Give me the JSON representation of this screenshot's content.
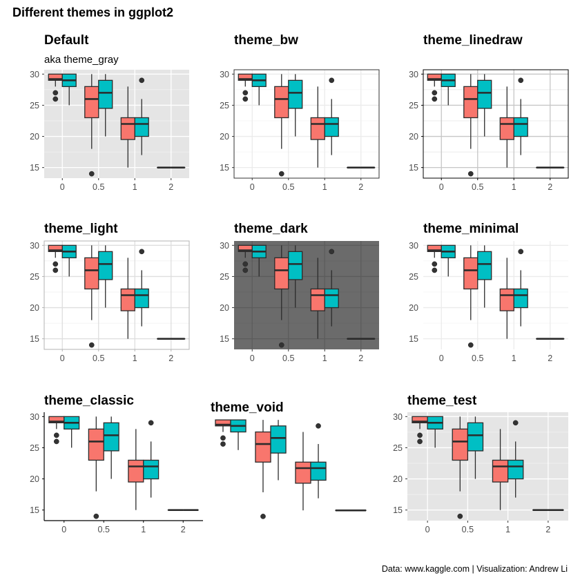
{
  "figure": {
    "title": "Different themes in ggplot2",
    "caption": "Data: www.kaggle.com | Visualization: Andrew Li"
  },
  "colors": {
    "group_a": "#F8766D",
    "group_b": "#00BFC4",
    "outline": "#2b2b2b",
    "gray_panel": "#E5E5E5",
    "dark_panel": "#6B6B6B",
    "text": "#000000",
    "axis_text": "#4D4D4D"
  },
  "chart_data": [
    {
      "type": "box",
      "title": "Default",
      "subtitle": "aka theme_gray",
      "theme": "gray",
      "categories": [
        "0",
        "0.5",
        "1",
        "2"
      ],
      "y_ticks": [
        15,
        20,
        25,
        30
      ],
      "ylim": [
        13.3,
        30.7
      ],
      "series": [
        {
          "boxes": [
            {
              "min": 28,
              "q1": 29,
              "median": 29.2,
              "q3": 30,
              "max": 30,
              "outliers": [
                27,
                26
              ]
            },
            {
              "min": 18,
              "q1": 23,
              "median": 26,
              "q3": 28,
              "max": 30,
              "outliers": [
                14
              ]
            },
            {
              "min": 15,
              "q1": 19.5,
              "median": 22,
              "q3": 23,
              "max": 28,
              "outliers": []
            },
            {
              "min": 15,
              "q1": 15,
              "median": 15,
              "q3": 15,
              "max": 15,
              "outliers": []
            }
          ]
        },
        {
          "boxes": [
            {
              "min": 25,
              "q1": 28,
              "median": 29,
              "q3": 30,
              "max": 30,
              "outliers": []
            },
            {
              "min": 20,
              "q1": 24.5,
              "median": 27,
              "q3": 29,
              "max": 30,
              "outliers": []
            },
            {
              "min": 17,
              "q1": 20,
              "median": 22,
              "q3": 23,
              "max": 26,
              "outliers": [
                29
              ]
            },
            {
              "min": 15,
              "q1": 15,
              "median": 15,
              "q3": 15,
              "max": 15,
              "outliers": []
            }
          ]
        }
      ]
    },
    {
      "type": "box",
      "title": "theme_bw",
      "theme": "bw",
      "categories": [
        "0",
        "0.5",
        "1",
        "2"
      ],
      "y_ticks": [
        15,
        20,
        25,
        30
      ],
      "ylim": [
        13.3,
        30.7
      ],
      "series": [
        {
          "boxes": [
            {
              "min": 28,
              "q1": 29,
              "median": 29.2,
              "q3": 30,
              "max": 30,
              "outliers": [
                27,
                26
              ]
            },
            {
              "min": 18,
              "q1": 23,
              "median": 26,
              "q3": 28,
              "max": 30,
              "outliers": [
                14
              ]
            },
            {
              "min": 15,
              "q1": 19.5,
              "median": 22,
              "q3": 23,
              "max": 28,
              "outliers": []
            },
            {
              "min": 15,
              "q1": 15,
              "median": 15,
              "q3": 15,
              "max": 15,
              "outliers": []
            }
          ]
        },
        {
          "boxes": [
            {
              "min": 25,
              "q1": 28,
              "median": 29,
              "q3": 30,
              "max": 30,
              "outliers": []
            },
            {
              "min": 20,
              "q1": 24.5,
              "median": 27,
              "q3": 29,
              "max": 30,
              "outliers": []
            },
            {
              "min": 17,
              "q1": 20,
              "median": 22,
              "q3": 23,
              "max": 26,
              "outliers": [
                29
              ]
            },
            {
              "min": 15,
              "q1": 15,
              "median": 15,
              "q3": 15,
              "max": 15,
              "outliers": []
            }
          ]
        }
      ]
    },
    {
      "type": "box",
      "title": "theme_linedraw",
      "theme": "linedraw",
      "categories": [
        "0",
        "0.5",
        "1",
        "2"
      ],
      "y_ticks": [
        15,
        20,
        25,
        30
      ],
      "ylim": [
        13.3,
        30.7
      ],
      "series": [
        {
          "boxes": [
            {
              "min": 28,
              "q1": 29,
              "median": 29.2,
              "q3": 30,
              "max": 30,
              "outliers": [
                27,
                26
              ]
            },
            {
              "min": 18,
              "q1": 23,
              "median": 26,
              "q3": 28,
              "max": 30,
              "outliers": [
                14
              ]
            },
            {
              "min": 15,
              "q1": 19.5,
              "median": 22,
              "q3": 23,
              "max": 28,
              "outliers": []
            },
            {
              "min": 15,
              "q1": 15,
              "median": 15,
              "q3": 15,
              "max": 15,
              "outliers": []
            }
          ]
        },
        {
          "boxes": [
            {
              "min": 25,
              "q1": 28,
              "median": 29,
              "q3": 30,
              "max": 30,
              "outliers": []
            },
            {
              "min": 20,
              "q1": 24.5,
              "median": 27,
              "q3": 29,
              "max": 30,
              "outliers": []
            },
            {
              "min": 17,
              "q1": 20,
              "median": 22,
              "q3": 23,
              "max": 26,
              "outliers": [
                29
              ]
            },
            {
              "min": 15,
              "q1": 15,
              "median": 15,
              "q3": 15,
              "max": 15,
              "outliers": []
            }
          ]
        }
      ]
    },
    {
      "type": "box",
      "title": "theme_light",
      "theme": "light",
      "categories": [
        "0",
        "0.5",
        "1",
        "2"
      ],
      "y_ticks": [
        15,
        20,
        25,
        30
      ],
      "ylim": [
        13.3,
        30.7
      ],
      "series": [
        {
          "boxes": [
            {
              "min": 28,
              "q1": 29,
              "median": 29.2,
              "q3": 30,
              "max": 30,
              "outliers": [
                27,
                26
              ]
            },
            {
              "min": 18,
              "q1": 23,
              "median": 26,
              "q3": 28,
              "max": 30,
              "outliers": [
                14
              ]
            },
            {
              "min": 15,
              "q1": 19.5,
              "median": 22,
              "q3": 23,
              "max": 28,
              "outliers": []
            },
            {
              "min": 15,
              "q1": 15,
              "median": 15,
              "q3": 15,
              "max": 15,
              "outliers": []
            }
          ]
        },
        {
          "boxes": [
            {
              "min": 25,
              "q1": 28,
              "median": 29,
              "q3": 30,
              "max": 30,
              "outliers": []
            },
            {
              "min": 20,
              "q1": 24.5,
              "median": 27,
              "q3": 29,
              "max": 30,
              "outliers": []
            },
            {
              "min": 17,
              "q1": 20,
              "median": 22,
              "q3": 23,
              "max": 26,
              "outliers": [
                29
              ]
            },
            {
              "min": 15,
              "q1": 15,
              "median": 15,
              "q3": 15,
              "max": 15,
              "outliers": []
            }
          ]
        }
      ]
    },
    {
      "type": "box",
      "title": "theme_dark",
      "theme": "dark",
      "categories": [
        "0",
        "0.5",
        "1",
        "2"
      ],
      "y_ticks": [
        15,
        20,
        25,
        30
      ],
      "ylim": [
        13.3,
        30.7
      ],
      "series": [
        {
          "boxes": [
            {
              "min": 28,
              "q1": 29,
              "median": 29.2,
              "q3": 30,
              "max": 30,
              "outliers": [
                27,
                26
              ]
            },
            {
              "min": 18,
              "q1": 23,
              "median": 26,
              "q3": 28,
              "max": 30,
              "outliers": [
                14
              ]
            },
            {
              "min": 15,
              "q1": 19.5,
              "median": 22,
              "q3": 23,
              "max": 28,
              "outliers": []
            },
            {
              "min": 15,
              "q1": 15,
              "median": 15,
              "q3": 15,
              "max": 15,
              "outliers": []
            }
          ]
        },
        {
          "boxes": [
            {
              "min": 25,
              "q1": 28,
              "median": 29,
              "q3": 30,
              "max": 30,
              "outliers": []
            },
            {
              "min": 20,
              "q1": 24.5,
              "median": 27,
              "q3": 29,
              "max": 30,
              "outliers": []
            },
            {
              "min": 17,
              "q1": 20,
              "median": 22,
              "q3": 23,
              "max": 26,
              "outliers": [
                29
              ]
            },
            {
              "min": 15,
              "q1": 15,
              "median": 15,
              "q3": 15,
              "max": 15,
              "outliers": []
            }
          ]
        }
      ]
    },
    {
      "type": "box",
      "title": "theme_minimal",
      "theme": "minimal",
      "categories": [
        "0",
        "0.5",
        "1",
        "2"
      ],
      "y_ticks": [
        15,
        20,
        25,
        30
      ],
      "ylim": [
        13.3,
        30.7
      ],
      "series": [
        {
          "boxes": [
            {
              "min": 28,
              "q1": 29,
              "median": 29.2,
              "q3": 30,
              "max": 30,
              "outliers": [
                27,
                26
              ]
            },
            {
              "min": 18,
              "q1": 23,
              "median": 26,
              "q3": 28,
              "max": 30,
              "outliers": [
                14
              ]
            },
            {
              "min": 15,
              "q1": 19.5,
              "median": 22,
              "q3": 23,
              "max": 28,
              "outliers": []
            },
            {
              "min": 15,
              "q1": 15,
              "median": 15,
              "q3": 15,
              "max": 15,
              "outliers": []
            }
          ]
        },
        {
          "boxes": [
            {
              "min": 25,
              "q1": 28,
              "median": 29,
              "q3": 30,
              "max": 30,
              "outliers": []
            },
            {
              "min": 20,
              "q1": 24.5,
              "median": 27,
              "q3": 29,
              "max": 30,
              "outliers": []
            },
            {
              "min": 17,
              "q1": 20,
              "median": 22,
              "q3": 23,
              "max": 26,
              "outliers": [
                29
              ]
            },
            {
              "min": 15,
              "q1": 15,
              "median": 15,
              "q3": 15,
              "max": 15,
              "outliers": []
            }
          ]
        }
      ]
    },
    {
      "type": "box",
      "title": "theme_classic",
      "theme": "classic",
      "categories": [
        "0",
        "0.5",
        "1",
        "2"
      ],
      "y_ticks": [
        15,
        20,
        25,
        30
      ],
      "ylim": [
        13.3,
        30.7
      ],
      "series": [
        {
          "boxes": [
            {
              "min": 28,
              "q1": 29,
              "median": 29.2,
              "q3": 30,
              "max": 30,
              "outliers": [
                27,
                26
              ]
            },
            {
              "min": 18,
              "q1": 23,
              "median": 26,
              "q3": 28,
              "max": 30,
              "outliers": [
                14
              ]
            },
            {
              "min": 15,
              "q1": 19.5,
              "median": 22,
              "q3": 23,
              "max": 28,
              "outliers": []
            },
            {
              "min": 15,
              "q1": 15,
              "median": 15,
              "q3": 15,
              "max": 15,
              "outliers": []
            }
          ]
        },
        {
          "boxes": [
            {
              "min": 25,
              "q1": 28,
              "median": 29,
              "q3": 30,
              "max": 30,
              "outliers": []
            },
            {
              "min": 20,
              "q1": 24.5,
              "median": 27,
              "q3": 29,
              "max": 30,
              "outliers": []
            },
            {
              "min": 17,
              "q1": 20,
              "median": 22,
              "q3": 23,
              "max": 26,
              "outliers": [
                29
              ]
            },
            {
              "min": 15,
              "q1": 15,
              "median": 15,
              "q3": 15,
              "max": 15,
              "outliers": []
            }
          ]
        }
      ]
    },
    {
      "type": "box",
      "title": "theme_void",
      "theme": "void",
      "categories": [],
      "y_ticks": [],
      "ylim": [
        13.3,
        30.7
      ],
      "series": [
        {
          "boxes": [
            {
              "min": 28,
              "q1": 29,
              "median": 29.2,
              "q3": 30,
              "max": 30,
              "outliers": [
                27,
                26
              ]
            },
            {
              "min": 18,
              "q1": 23,
              "median": 26,
              "q3": 28,
              "max": 30,
              "outliers": [
                14
              ]
            },
            {
              "min": 15,
              "q1": 19.5,
              "median": 22,
              "q3": 23,
              "max": 28,
              "outliers": []
            },
            {
              "min": 15,
              "q1": 15,
              "median": 15,
              "q3": 15,
              "max": 15,
              "outliers": []
            }
          ]
        },
        {
          "boxes": [
            {
              "min": 25,
              "q1": 28,
              "median": 29,
              "q3": 30,
              "max": 30,
              "outliers": []
            },
            {
              "min": 20,
              "q1": 24.5,
              "median": 27,
              "q3": 29,
              "max": 30,
              "outliers": []
            },
            {
              "min": 17,
              "q1": 20,
              "median": 22,
              "q3": 23,
              "max": 26,
              "outliers": [
                29
              ]
            },
            {
              "min": 15,
              "q1": 15,
              "median": 15,
              "q3": 15,
              "max": 15,
              "outliers": []
            }
          ]
        }
      ]
    },
    {
      "type": "box",
      "title": "theme_test",
      "theme": "test",
      "categories": [
        "0",
        "0.5",
        "1",
        "2"
      ],
      "y_ticks": [
        15,
        20,
        25,
        30
      ],
      "ylim": [
        13.3,
        30.7
      ],
      "series": [
        {
          "boxes": [
            {
              "min": 28,
              "q1": 29,
              "median": 29.2,
              "q3": 30,
              "max": 30,
              "outliers": [
                27,
                26
              ]
            },
            {
              "min": 18,
              "q1": 23,
              "median": 26,
              "q3": 28,
              "max": 30,
              "outliers": [
                14
              ]
            },
            {
              "min": 15,
              "q1": 19.5,
              "median": 22,
              "q3": 23,
              "max": 28,
              "outliers": []
            },
            {
              "min": 15,
              "q1": 15,
              "median": 15,
              "q3": 15,
              "max": 15,
              "outliers": []
            }
          ]
        },
        {
          "boxes": [
            {
              "min": 25,
              "q1": 28,
              "median": 29,
              "q3": 30,
              "max": 30,
              "outliers": []
            },
            {
              "min": 20,
              "q1": 24.5,
              "median": 27,
              "q3": 29,
              "max": 30,
              "outliers": []
            },
            {
              "min": 17,
              "q1": 20,
              "median": 22,
              "q3": 23,
              "max": 26,
              "outliers": [
                29
              ]
            },
            {
              "min": 15,
              "q1": 15,
              "median": 15,
              "q3": 15,
              "max": 15,
              "outliers": []
            }
          ]
        }
      ]
    }
  ]
}
